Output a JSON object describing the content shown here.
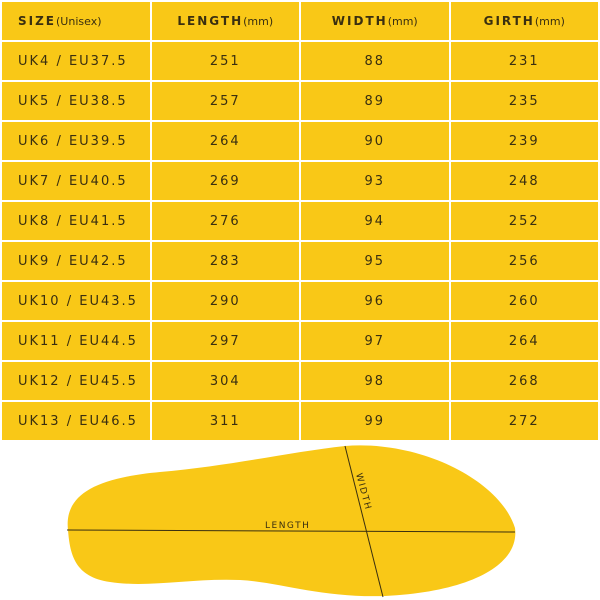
{
  "table": {
    "headers": [
      {
        "label": "SIZE",
        "unit": "(Unisex)"
      },
      {
        "label": "LENGTH",
        "unit": "(mm)"
      },
      {
        "label": "WIDTH",
        "unit": "(mm)"
      },
      {
        "label": "GIRTH",
        "unit": "(mm)"
      }
    ],
    "rows": [
      [
        "UK4 / EU37.5",
        "251",
        "88",
        "231"
      ],
      [
        "UK5 / EU38.5",
        "257",
        "89",
        "235"
      ],
      [
        "UK6 / EU39.5",
        "264",
        "90",
        "239"
      ],
      [
        "UK7 / EU40.5",
        "269",
        "93",
        "248"
      ],
      [
        "UK8 / EU41.5",
        "276",
        "94",
        "252"
      ],
      [
        "UK9 / EU42.5",
        "283",
        "95",
        "256"
      ],
      [
        "UK10 / EU43.5",
        "290",
        "96",
        "260"
      ],
      [
        "UK11 / EU44.5",
        "297",
        "97",
        "264"
      ],
      [
        "UK12 / EU45.5",
        "304",
        "98",
        "268"
      ],
      [
        "UK13 / EU46.5",
        "311",
        "99",
        "272"
      ]
    ]
  },
  "diagram": {
    "length_label": "LENGTH",
    "width_label": "WIDTH",
    "fill": "#F9C817"
  }
}
